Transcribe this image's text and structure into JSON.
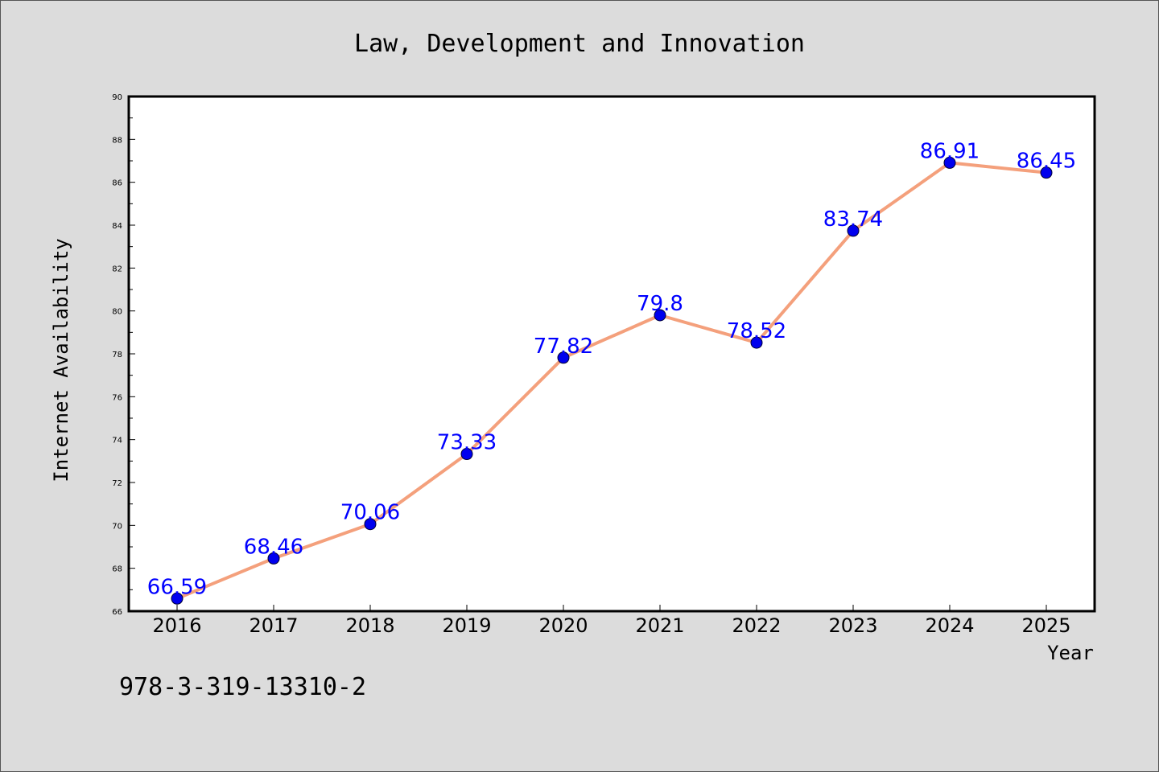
{
  "chart_data": {
    "type": "line",
    "title": "Law, Development and Innovation",
    "xlabel": "Year",
    "ylabel": "Internet Availability",
    "categories": [
      "2016",
      "2017",
      "2018",
      "2019",
      "2020",
      "2021",
      "2022",
      "2023",
      "2024",
      "2025"
    ],
    "series": [
      {
        "values": [
          66.59,
          68.46,
          70.06,
          73.33,
          77.82,
          79.8,
          78.52,
          83.74,
          86.91,
          86.45
        ],
        "data_labels": [
          "66.59",
          "68.46",
          "70.06",
          "73.33",
          "77.82",
          "79.8",
          "78.52",
          "83.74",
          "86.91",
          "86.45"
        ]
      }
    ],
    "ylim": [
      66,
      90
    ],
    "yticks": [
      "66",
      "68",
      "70",
      "72",
      "74",
      "76",
      "78",
      "80",
      "82",
      "84",
      "86",
      "88",
      "90"
    ],
    "grid": false,
    "legend": "none",
    "colors": {
      "line": "#f4a07c",
      "marker": "#0000ee",
      "label": "#0000ff",
      "background": "#dcdcdc",
      "plot_background": "#ffffff"
    }
  },
  "footer": {
    "isbn": "978-3-319-13310-2"
  }
}
